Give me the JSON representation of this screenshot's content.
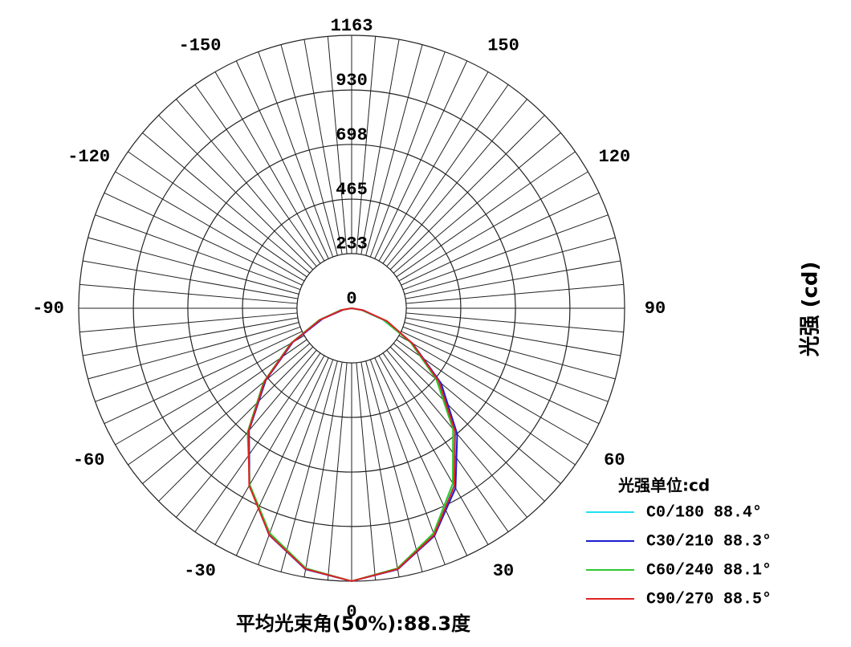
{
  "chart_data": {
    "type": "polar",
    "x": [
      -90,
      -80,
      -70,
      -60,
      -50,
      -40,
      -30,
      -20,
      -10,
      0,
      10,
      20,
      30,
      40,
      50,
      60,
      70,
      80,
      90
    ],
    "xticks": [
      -150,
      -120,
      -90,
      -60,
      -30,
      0,
      30,
      60,
      90,
      120,
      150
    ],
    "ylim": [
      0,
      1163
    ],
    "yticks": [
      0,
      233,
      465,
      698,
      930,
      1163
    ],
    "ylabel": "光强 (cd)",
    "legend_title": "光强单位:cd",
    "footer": "平均光束角(50%):88.3度",
    "series": [
      {
        "name": "C0/180 88.4°",
        "color": "#22e0f0",
        "values": [
          0,
          40,
          140,
          295,
          482,
          683,
          872,
          1027,
          1128,
          1163,
          1128,
          1027,
          872,
          683,
          482,
          295,
          140,
          40,
          0
        ]
      },
      {
        "name": "C30/210 88.3°",
        "color": "#1c1cd0",
        "values": [
          0,
          36,
          132,
          290,
          478,
          680,
          870,
          1028,
          1130,
          1163,
          1130,
          1032,
          885,
          700,
          498,
          300,
          150,
          50,
          0
        ]
      },
      {
        "name": "C60/240 88.1°",
        "color": "#2ec82e",
        "values": [
          0,
          48,
          148,
          300,
          490,
          690,
          868,
          1020,
          1125,
          1163,
          1125,
          1020,
          862,
          672,
          470,
          290,
          145,
          45,
          0
        ]
      },
      {
        "name": "C90/270 88.5°",
        "color": "#e02222",
        "values": [
          0,
          42,
          142,
          296,
          484,
          684,
          873,
          1027,
          1128,
          1163,
          1128,
          1028,
          875,
          686,
          485,
          298,
          160,
          48,
          0
        ]
      }
    ]
  }
}
